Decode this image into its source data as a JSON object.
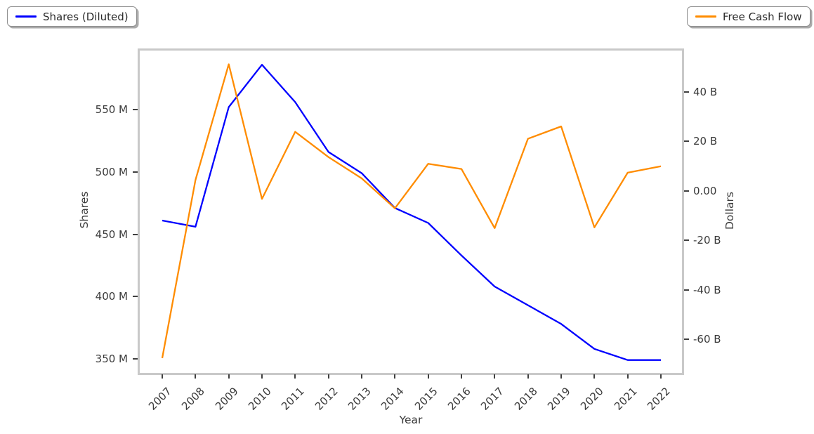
{
  "chart_data": {
    "type": "line",
    "x": [
      2007,
      2008,
      2009,
      2010,
      2011,
      2012,
      2013,
      2014,
      2015,
      2016,
      2017,
      2018,
      2019,
      2020,
      2021,
      2022
    ],
    "series": [
      {
        "name": "Shares (Diluted)",
        "axis": "left",
        "color": "#0000ff",
        "unit": "M",
        "values": [
          461,
          456,
          552,
          586,
          556,
          516,
          499,
          471,
          459,
          433,
          408,
          393,
          378,
          358,
          349,
          349
        ]
      },
      {
        "name": "Free Cash Flow",
        "axis": "right",
        "color": "#ff8c00",
        "unit": "B",
        "values": [
          -67.6,
          4.3,
          51.1,
          -3.3,
          23.8,
          13.6,
          5.0,
          -7.1,
          10.9,
          8.8,
          -15.1,
          21.0,
          26.0,
          -14.8,
          7.3,
          9.9
        ]
      }
    ],
    "title": "",
    "xlabel": "Year",
    "ylabel_left": "Shares",
    "ylabel_right": "Dollars",
    "yticks_left": {
      "values": [
        550,
        500,
        450,
        400,
        350
      ],
      "labels": [
        "550 M",
        "500 M",
        "450 M",
        "400 M",
        "350 M"
      ]
    },
    "yticks_right": {
      "values": [
        40,
        20,
        0,
        -20,
        -40,
        -60
      ],
      "labels": [
        "40 B",
        "20 B",
        "0.00",
        "-20 B",
        "-40 B",
        "-60 B"
      ]
    },
    "ylim_left": [
      338.7,
      598.5
    ],
    "ylim_right": [
      -73.6,
      57.2
    ],
    "grid": false,
    "legend_position": "outside-top-left and outside-top-right"
  }
}
